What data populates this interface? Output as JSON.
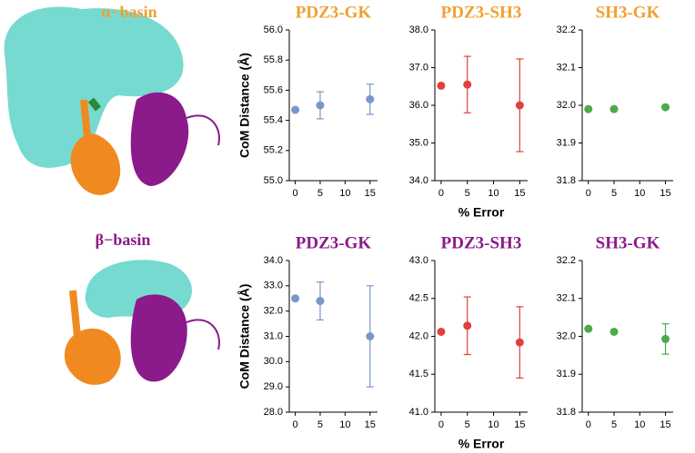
{
  "images": [
    {
      "label": "α−basin",
      "color": "#f0a030"
    },
    {
      "label": "β−basin",
      "color": "#8b1a8b"
    }
  ],
  "chart_data": [
    {
      "type": "scatter",
      "title": "PDZ3-GK",
      "title_color": "#f0a030",
      "y_label": "CoM Distance (Å)",
      "color": "#7a96c8",
      "x": [
        0,
        5,
        15
      ],
      "values": [
        55.47,
        55.5,
        55.54
      ],
      "errors": [
        0,
        0.09,
        0.1
      ],
      "xlim": [
        -1.2,
        16.5
      ],
      "xticks": [
        0,
        5,
        10,
        15
      ],
      "ylim": [
        55,
        56
      ],
      "yticks": [
        {
          "value": 55,
          "label": "55.0"
        },
        {
          "value": 55.2,
          "label": "55.2"
        },
        {
          "value": 55.4,
          "label": "55.4"
        },
        {
          "value": 55.6,
          "label": "55.6"
        },
        {
          "value": 55.8,
          "label": "55.8"
        },
        {
          "value": 56,
          "label": "56.0"
        }
      ]
    },
    {
      "type": "scatter",
      "title": "PDZ3-SH3",
      "title_color": "#f0a030",
      "x_label": "% Error",
      "color": "#e0413a",
      "x": [
        0,
        5,
        15
      ],
      "values": [
        36.52,
        36.55,
        36.0
      ],
      "errors": [
        0,
        0.75,
        1.23
      ],
      "xlim": [
        -1.2,
        16.5
      ],
      "xticks": [
        0,
        5,
        10,
        15
      ],
      "ylim": [
        34,
        38
      ],
      "yticks": [
        {
          "value": 34,
          "label": "34.0"
        },
        {
          "value": 35,
          "label": "35.0"
        },
        {
          "value": 36,
          "label": "36.0"
        },
        {
          "value": 37,
          "label": "37.0"
        },
        {
          "value": 38,
          "label": "38.0"
        }
      ]
    },
    {
      "type": "scatter",
      "title": "SH3-GK",
      "title_color": "#f0a030",
      "color": "#4caa4a",
      "x": [
        0,
        5,
        15
      ],
      "values": [
        31.99,
        31.99,
        31.995
      ],
      "errors": [
        0,
        0,
        0
      ],
      "xlim": [
        -1.2,
        16.5
      ],
      "xticks": [
        0,
        5,
        10,
        15
      ],
      "ylim": [
        31.8,
        32.2
      ],
      "yticks": [
        {
          "value": 31.8,
          "label": "31.8"
        },
        {
          "value": 31.9,
          "label": "31.9"
        },
        {
          "value": 32,
          "label": "32.0"
        },
        {
          "value": 32.1,
          "label": "32.1"
        },
        {
          "value": 32.2,
          "label": "32.2"
        }
      ]
    },
    {
      "type": "scatter",
      "title": "PDZ3-GK",
      "title_color": "#8b1a8b",
      "y_label": "CoM Distance (Å)",
      "color": "#7a96c8",
      "x": [
        0,
        5,
        15
      ],
      "values": [
        32.5,
        32.4,
        31.0
      ],
      "errors": [
        0,
        0.75,
        2.0
      ],
      "xlim": [
        -1.2,
        16.5
      ],
      "xticks": [
        0,
        5,
        10,
        15
      ],
      "ylim": [
        28,
        34
      ],
      "yticks": [
        {
          "value": 28,
          "label": "28.0"
        },
        {
          "value": 29,
          "label": "29.0"
        },
        {
          "value": 30,
          "label": "30.0"
        },
        {
          "value": 31,
          "label": "31.0"
        },
        {
          "value": 32,
          "label": "32.0"
        },
        {
          "value": 33,
          "label": "33.0"
        },
        {
          "value": 34,
          "label": "34.0"
        }
      ]
    },
    {
      "type": "scatter",
      "title": "PDZ3-SH3",
      "title_color": "#8b1a8b",
      "x_label": "% Error",
      "color": "#e0413a",
      "x": [
        0,
        5,
        15
      ],
      "values": [
        42.06,
        42.14,
        41.92
      ],
      "errors": [
        0,
        0.38,
        0.47
      ],
      "xlim": [
        -1.2,
        16.5
      ],
      "xticks": [
        0,
        5,
        10,
        15
      ],
      "ylim": [
        41,
        43
      ],
      "yticks": [
        {
          "value": 41,
          "label": "41.0"
        },
        {
          "value": 41.5,
          "label": "41.5"
        },
        {
          "value": 42,
          "label": "42.0"
        },
        {
          "value": 42.5,
          "label": "42.5"
        },
        {
          "value": 43,
          "label": "43.0"
        }
      ]
    },
    {
      "type": "scatter",
      "title": "SH3-GK",
      "title_color": "#8b1a8b",
      "color": "#4caa4a",
      "x": [
        0,
        5,
        15
      ],
      "values": [
        32.02,
        32.012,
        31.993
      ],
      "errors": [
        0,
        0,
        0.04
      ],
      "xlim": [
        -1.2,
        16.5
      ],
      "xticks": [
        0,
        5,
        10,
        15
      ],
      "ylim": [
        31.8,
        32.2
      ],
      "yticks": [
        {
          "value": 31.8,
          "label": "31.8"
        },
        {
          "value": 31.9,
          "label": "31.9"
        },
        {
          "value": 32,
          "label": "32.0"
        },
        {
          "value": 32.1,
          "label": "32.1"
        },
        {
          "value": 32.2,
          "label": "32.2"
        }
      ]
    }
  ]
}
